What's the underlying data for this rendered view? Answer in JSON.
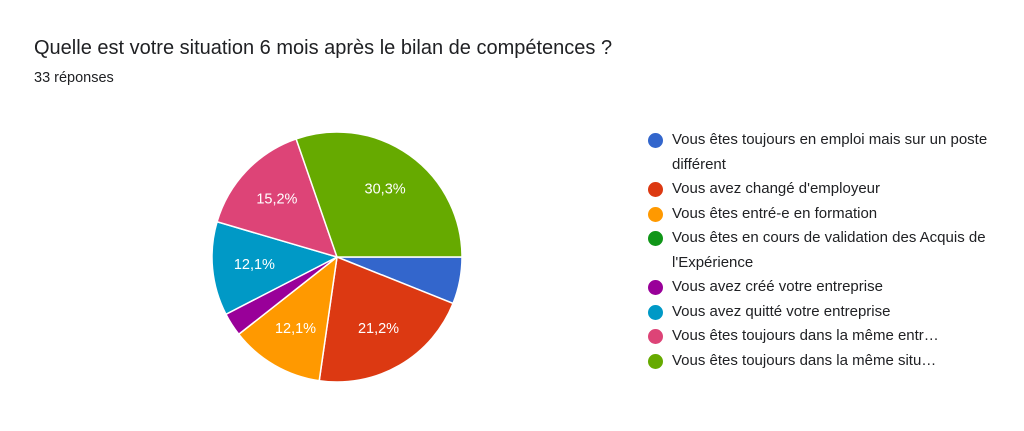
{
  "title": "Quelle est votre situation 6 mois après le bilan de compétences ?",
  "subtitle": "33 réponses",
  "chart_data": {
    "type": "pie",
    "title": "Quelle est votre situation 6 mois après le bilan de compétences ?",
    "total_responses": 33,
    "categories": [
      "Vous êtes toujours en emploi mais sur un poste différent",
      "Vous avez changé d'employeur",
      "Vous êtes entré-e en formation",
      "Vous êtes en cours de validation des Acquis de l'Expérience",
      "Vous avez créé votre entreprise",
      "Vous avez quitté votre entreprise",
      "Vous êtes toujours dans la même entr…",
      "Vous êtes toujours dans la même situ…"
    ],
    "values": [
      2,
      7,
      4,
      0,
      1,
      4,
      5,
      10
    ],
    "percent_labels": [
      "",
      "21,2%",
      "12,1%",
      "",
      "",
      "12,1%",
      "15,2%",
      "30,3%"
    ],
    "colors": [
      "#3366cc",
      "#dc3912",
      "#ff9900",
      "#109618",
      "#990099",
      "#0099c6",
      "#dd4477",
      "#66aa00"
    ],
    "legend_position": "right"
  }
}
